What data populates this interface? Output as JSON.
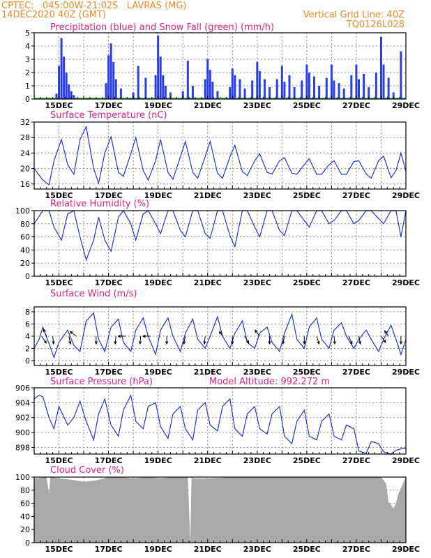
{
  "header": {
    "line1_left": "CPTEC:   045:00W-21:02S   LAVRAS (MG)",
    "line2_left": "14DEC2020 40Z (GMT)",
    "line2_right": "Vertical Grid Line: 40Z",
    "line3_right": "TQ0126L028"
  },
  "panels": {
    "precip_title": "Precipitation (blue) and Snow Fall (green) (mm/h)",
    "temp_title": "Surface Temperature (nC)",
    "rh_title": "Relative Humidity (%)",
    "wind_title": "Surface Wind (m/s)",
    "pres_title": "Surface Pressure (hPa)",
    "pres_extra": "Model Altitude: 992.272 m",
    "cloud_title": "Cloud Cover (%)"
  },
  "colors": {
    "line": "#2233dd",
    "bar": "#2a3ee8",
    "cloud": "#a9a9a9",
    "title": "#e0208a",
    "header": "#f08a24",
    "grid": "#888888"
  },
  "chart_data": [
    {
      "type": "bar",
      "title": "Precipitation (blue) and Snow Fall (green) (mm/h)",
      "x_tick_labels": [
        "15DEC",
        "17DEC",
        "19DEC",
        "21DEC",
        "23DEC",
        "25DEC",
        "27DEC",
        "29DEC"
      ],
      "y_ticks": [
        "0",
        "1",
        "2",
        "3",
        "4",
        "5"
      ],
      "ylim": [
        0,
        5
      ],
      "x_days": [
        14.9,
        15.0,
        15.1,
        15.2,
        15.3,
        15.4,
        15.5,
        15.6,
        16.9,
        17.0,
        17.1,
        17.2,
        17.3,
        17.5,
        18.0,
        18.2,
        18.5,
        18.9,
        19.0,
        19.1,
        19.2,
        19.3,
        19.5,
        20.0,
        20.2,
        20.4,
        20.9,
        21.0,
        21.1,
        21.2,
        21.4,
        21.9,
        22.0,
        22.1,
        22.3,
        22.5,
        22.8,
        23.0,
        23.1,
        23.3,
        23.5,
        23.8,
        24.0,
        24.1,
        24.3,
        24.5,
        24.8,
        25.0,
        25.1,
        25.3,
        25.5,
        25.8,
        26.0,
        26.1,
        26.3,
        26.5,
        26.8,
        27.0,
        27.1,
        27.3,
        27.5,
        27.8,
        28.0,
        28.1,
        28.3,
        28.5,
        28.8
      ],
      "values": [
        0.4,
        2.5,
        4.6,
        3.2,
        2.0,
        1.1,
        0.6,
        0.3,
        1.2,
        3.3,
        4.2,
        2.8,
        1.5,
        0.8,
        0.5,
        2.5,
        1.6,
        1.8,
        4.8,
        3.2,
        1.8,
        1.0,
        0.5,
        0.6,
        2.9,
        1.0,
        1.5,
        3.0,
        2.2,
        1.3,
        0.6,
        0.9,
        2.3,
        1.8,
        1.5,
        0.8,
        1.4,
        2.8,
        2.1,
        1.5,
        0.9,
        1.5,
        2.5,
        1.3,
        1.8,
        0.9,
        1.4,
        2.6,
        2.0,
        1.7,
        1.0,
        1.6,
        2.6,
        1.4,
        1.2,
        0.8,
        1.8,
        2.6,
        1.5,
        1.9,
        0.9,
        2.0,
        4.7,
        2.6,
        1.6,
        0.5,
        3.6
      ],
      "snow": "0 throughout (green line along baseline)"
    },
    {
      "type": "line",
      "title": "Surface Temperature (nC)",
      "x_tick_labels": [
        "15DEC",
        "17DEC",
        "19DEC",
        "21DEC",
        "23DEC",
        "25DEC",
        "27DEC",
        "29DEC"
      ],
      "y_ticks": [
        "16",
        "20",
        "24",
        "28",
        "32"
      ],
      "ylim": [
        14.7,
        32
      ],
      "x": [
        14.0,
        14.35,
        14.6,
        14.8,
        15.1,
        15.35,
        15.6,
        15.85,
        16.1,
        16.4,
        16.6,
        16.85,
        17.1,
        17.4,
        17.6,
        17.9,
        18.1,
        18.4,
        18.6,
        18.9,
        19.1,
        19.4,
        19.6,
        19.9,
        20.1,
        20.4,
        20.6,
        20.9,
        21.1,
        21.4,
        21.6,
        21.9,
        22.1,
        22.4,
        22.6,
        22.9,
        23.1,
        23.4,
        23.6,
        23.9,
        24.1,
        24.4,
        24.6,
        24.9,
        25.1,
        25.4,
        25.6,
        25.9,
        26.1,
        26.4,
        26.6,
        26.9,
        27.1,
        27.4,
        27.6,
        27.9,
        28.1,
        28.4,
        28.6,
        28.8,
        29.0
      ],
      "y": [
        20.0,
        17.0,
        15.8,
        22.0,
        27.5,
        21.0,
        18.5,
        27.5,
        30.8,
        20.0,
        16.2,
        24.0,
        28.2,
        19.0,
        18.0,
        23.8,
        28.0,
        19.5,
        17.0,
        22.0,
        27.5,
        19.0,
        17.2,
        23.0,
        27.0,
        19.0,
        17.5,
        23.0,
        27.0,
        18.8,
        17.5,
        23.0,
        26.0,
        19.2,
        18.2,
        22.0,
        23.8,
        19.0,
        18.6,
        22.0,
        22.8,
        18.8,
        18.5,
        21.0,
        22.5,
        18.5,
        18.5,
        21.0,
        22.0,
        18.5,
        18.5,
        21.8,
        22.0,
        18.6,
        17.5,
        22.0,
        23.2,
        17.6,
        19.5,
        24.0,
        19.3
      ]
    },
    {
      "type": "line",
      "title": "Relative Humidity (%)",
      "x_tick_labels": [
        "15DEC",
        "17DEC",
        "19DEC",
        "21DEC",
        "23DEC",
        "25DEC",
        "27DEC",
        "29DEC"
      ],
      "y_ticks": [
        "0",
        "20",
        "40",
        "60",
        "80",
        "100"
      ],
      "ylim": [
        0,
        100
      ],
      "x": [
        14.0,
        14.35,
        14.6,
        14.8,
        15.1,
        15.35,
        15.6,
        15.85,
        16.1,
        16.4,
        16.6,
        16.85,
        17.1,
        17.4,
        17.6,
        17.9,
        18.1,
        18.4,
        18.6,
        18.9,
        19.1,
        19.4,
        19.6,
        19.9,
        20.1,
        20.4,
        20.6,
        20.9,
        21.1,
        21.4,
        21.6,
        21.9,
        22.1,
        22.4,
        22.6,
        22.9,
        23.1,
        23.4,
        23.6,
        23.9,
        24.1,
        24.4,
        24.6,
        24.9,
        25.1,
        25.4,
        25.6,
        25.9,
        26.1,
        26.4,
        26.6,
        26.9,
        27.1,
        27.4,
        27.6,
        27.9,
        28.1,
        28.4,
        28.6,
        28.8,
        29.0
      ],
      "y": [
        80,
        100,
        100,
        75,
        55,
        95,
        100,
        60,
        25,
        55,
        90,
        55,
        38,
        90,
        100,
        80,
        55,
        95,
        100,
        80,
        65,
        100,
        100,
        70,
        60,
        100,
        100,
        65,
        58,
        100,
        100,
        62,
        45,
        100,
        100,
        75,
        60,
        100,
        100,
        70,
        62,
        100,
        100,
        85,
        75,
        100,
        100,
        80,
        85,
        100,
        100,
        80,
        85,
        100,
        100,
        88,
        80,
        100,
        100,
        60,
        100
      ]
    },
    {
      "type": "line",
      "title": "Surface Wind (m/s)",
      "x_tick_labels": [
        "15DEC",
        "17DEC",
        "19DEC",
        "21DEC",
        "23DEC",
        "25DEC",
        "27DEC",
        "29DEC"
      ],
      "y_ticks": [
        "0",
        "2",
        "4",
        "6",
        "8"
      ],
      "ylim": [
        -0.8,
        8.8
      ],
      "x": [
        14.0,
        14.2,
        14.35,
        14.6,
        14.8,
        15.0,
        15.35,
        15.6,
        15.85,
        16.1,
        16.4,
        16.6,
        16.85,
        17.1,
        17.4,
        17.6,
        17.9,
        18.1,
        18.4,
        18.6,
        18.9,
        19.1,
        19.4,
        19.6,
        19.9,
        20.1,
        20.4,
        20.6,
        20.9,
        21.1,
        21.4,
        21.6,
        21.9,
        22.1,
        22.4,
        22.6,
        22.9,
        23.1,
        23.4,
        23.6,
        23.9,
        24.1,
        24.4,
        24.6,
        24.9,
        25.1,
        25.4,
        25.6,
        25.9,
        26.1,
        26.4,
        26.6,
        26.9,
        27.1,
        27.4,
        27.6,
        27.9,
        28.1,
        28.4,
        28.6,
        28.8,
        29.0
      ],
      "y": [
        2.0,
        3.5,
        5.5,
        2.8,
        0.5,
        3.0,
        5.0,
        2.5,
        1.5,
        6.5,
        7.8,
        3.5,
        1.5,
        5.5,
        6.8,
        3.0,
        1.5,
        5.0,
        7.0,
        4.0,
        1.0,
        5.0,
        7.0,
        4.0,
        1.5,
        4.5,
        6.8,
        3.5,
        2.0,
        4.0,
        7.2,
        4.0,
        2.0,
        4.5,
        6.5,
        3.0,
        2.0,
        4.5,
        5.5,
        3.0,
        1.5,
        4.5,
        7.6,
        3.5,
        2.0,
        5.5,
        7.0,
        3.5,
        2.0,
        5.0,
        6.2,
        4.0,
        2.0,
        3.5,
        5.0,
        3.5,
        1.5,
        3.5,
        5.8,
        3.5,
        1.0,
        3.5
      ],
      "wind_arrows": [
        {
          "day": 14.3,
          "u": 0.6,
          "v": -0.9
        },
        {
          "day": 14.5,
          "u": -0.4,
          "v": 0.9
        },
        {
          "day": 14.75,
          "u": 0.1,
          "v": -1.0
        },
        {
          "day": 15.4,
          "u": 0.2,
          "v": -1.0
        },
        {
          "day": 15.7,
          "u": -0.8,
          "v": 0.6
        },
        {
          "day": 16.5,
          "u": 0.0,
          "v": -1.0
        },
        {
          "day": 17.3,
          "u": -0.1,
          "v": -1.0
        },
        {
          "day": 17.7,
          "u": -1.0,
          "v": 0.0
        },
        {
          "day": 18.3,
          "u": -0.1,
          "v": -1.0
        },
        {
          "day": 18.7,
          "u": -1.0,
          "v": 0.0
        },
        {
          "day": 19.35,
          "u": 0.0,
          "v": -1.0
        },
        {
          "day": 20.1,
          "u": -0.2,
          "v": -1.0
        },
        {
          "day": 20.9,
          "u": -0.1,
          "v": -1.0
        },
        {
          "day": 21.6,
          "u": -0.4,
          "v": 0.6
        },
        {
          "day": 22.0,
          "u": 0.0,
          "v": -1.0
        },
        {
          "day": 22.5,
          "u": 0.5,
          "v": -0.9
        },
        {
          "day": 23.1,
          "u": -0.6,
          "v": 0.8
        },
        {
          "day": 23.5,
          "u": 0.0,
          "v": -1.0
        },
        {
          "day": 24.1,
          "u": -0.2,
          "v": -1.0
        },
        {
          "day": 24.9,
          "u": 0.0,
          "v": -1.0
        },
        {
          "day": 25.4,
          "u": 0.3,
          "v": -1.0
        },
        {
          "day": 26.1,
          "u": 0.1,
          "v": -1.0
        },
        {
          "day": 26.7,
          "u": 0.4,
          "v": -1.0
        },
        {
          "day": 27.1,
          "u": 0.2,
          "v": -1.0
        },
        {
          "day": 28.0,
          "u": 0.6,
          "v": -0.8
        },
        {
          "day": 28.3,
          "u": -0.5,
          "v": 0.7
        },
        {
          "day": 28.8,
          "u": 0.0,
          "v": -1.0
        }
      ]
    },
    {
      "type": "line",
      "title": "Surface Pressure (hPa)",
      "annotation": "Model Altitude: 992.272 m",
      "x_tick_labels": [
        "15DEC",
        "17DEC",
        "19DEC",
        "21DEC",
        "23DEC",
        "25DEC",
        "27DEC",
        "29DEC"
      ],
      "y_ticks": [
        "898",
        "900",
        "902",
        "904",
        "906"
      ],
      "ylim": [
        897.1,
        906
      ],
      "x": [
        14.0,
        14.2,
        14.35,
        14.6,
        14.8,
        15.0,
        15.35,
        15.6,
        15.85,
        16.1,
        16.4,
        16.6,
        16.85,
        17.1,
        17.4,
        17.6,
        17.9,
        18.1,
        18.4,
        18.6,
        18.9,
        19.1,
        19.4,
        19.6,
        19.9,
        20.1,
        20.4,
        20.6,
        20.9,
        21.1,
        21.4,
        21.6,
        21.9,
        22.1,
        22.4,
        22.6,
        22.9,
        23.1,
        23.4,
        23.6,
        23.9,
        24.1,
        24.4,
        24.6,
        24.9,
        25.1,
        25.4,
        25.6,
        25.9,
        26.1,
        26.4,
        26.6,
        26.9,
        27.1,
        27.4,
        27.6,
        27.9,
        28.1,
        28.4,
        28.6,
        28.8,
        29.0
      ],
      "y": [
        904.5,
        905.0,
        904.8,
        902.0,
        900.5,
        903.5,
        901.0,
        902.0,
        904.2,
        901.5,
        899.0,
        902.5,
        904.5,
        901.0,
        899.5,
        903.0,
        905.0,
        901.5,
        900.5,
        903.5,
        904.0,
        900.8,
        899.2,
        902.5,
        903.5,
        900.5,
        899.0,
        903.0,
        904.0,
        901.0,
        900.2,
        903.5,
        904.5,
        900.5,
        899.5,
        902.5,
        903.5,
        900.5,
        899.8,
        902.5,
        903.5,
        899.5,
        898.5,
        901.5,
        903.0,
        899.5,
        899.0,
        901.5,
        902.5,
        899.5,
        899.0,
        901.0,
        900.5,
        897.5,
        897.2,
        898.8,
        898.5,
        897.4,
        897.1,
        897.6,
        897.8,
        897.9
      ]
    },
    {
      "type": "area",
      "title": "Cloud Cover (%)",
      "x_tick_labels": [
        "15DEC",
        "17DEC",
        "19DEC",
        "21DEC",
        "23DEC",
        "25DEC",
        "27DEC",
        "29DEC"
      ],
      "y_ticks": [
        "0",
        "20",
        "40",
        "60",
        "80",
        "100"
      ],
      "ylim": [
        0,
        100
      ],
      "x": [
        14.0,
        14.5,
        14.6,
        14.65,
        14.7,
        15.0,
        15.5,
        16.0,
        16.5,
        17.0,
        17.5,
        18.0,
        18.5,
        18.8,
        19.0,
        19.5,
        20.2,
        20.3,
        20.35,
        20.45,
        21.0,
        22.0,
        23.0,
        24.0,
        25.0,
        26.0,
        27.0,
        27.7,
        28.0,
        28.2,
        28.3,
        28.4,
        28.5,
        28.6,
        28.7,
        29.0
      ],
      "y": [
        98,
        100,
        75,
        99,
        100,
        98,
        96,
        93,
        95,
        100,
        100,
        98,
        100,
        100,
        98,
        100,
        100,
        0,
        100,
        98,
        98,
        100,
        100,
        100,
        100,
        100,
        100,
        100,
        100,
        90,
        62,
        58,
        52,
        60,
        75,
        100
      ]
    }
  ]
}
